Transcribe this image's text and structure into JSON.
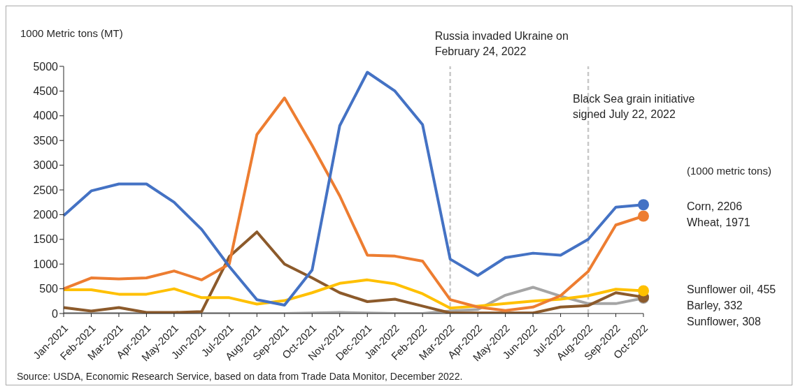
{
  "chart_data": {
    "type": "line",
    "ylabel": "1000 Metric tons (MT)",
    "categories": [
      "Jan-2021",
      "Feb-2021",
      "Mar-2021",
      "Apr-2021",
      "May-2021",
      "Jun-2021",
      "Jul-2021",
      "Aug-2021",
      "Sep-2021",
      "Oct-2021",
      "Nov-2021",
      "Dec-2021",
      "Jan-2022",
      "Feb-2022",
      "Mar-2022",
      "Apr-2022",
      "May-2022",
      "Jun-2022",
      "Jul-2022",
      "Aug-2022",
      "Sep-2022",
      "Oct-2022"
    ],
    "series": [
      {
        "name": "Corn, 2206",
        "color": "#4472c4",
        "values": [
          1980,
          2480,
          2620,
          2620,
          2250,
          1700,
          950,
          280,
          170,
          880,
          3800,
          4880,
          4500,
          3820,
          1100,
          770,
          1130,
          1220,
          1180,
          1500,
          2150,
          2200
        ]
      },
      {
        "name": "Wheat, 1971",
        "color": "#ed7d31",
        "values": [
          500,
          720,
          700,
          720,
          860,
          680,
          1000,
          3620,
          4360,
          3400,
          2380,
          1180,
          1160,
          1060,
          280,
          130,
          60,
          130,
          360,
          850,
          1790,
          1970
        ]
      },
      {
        "name": "Sunflower oil, 455",
        "color": "#ffc000",
        "values": [
          480,
          480,
          390,
          390,
          500,
          320,
          320,
          190,
          260,
          420,
          610,
          680,
          600,
          400,
          110,
          150,
          200,
          250,
          290,
          360,
          490,
          460
        ]
      },
      {
        "name": "Barley, 332",
        "color": "#8c5a2b",
        "values": [
          120,
          50,
          120,
          20,
          20,
          40,
          1150,
          1650,
          1000,
          720,
          420,
          240,
          290,
          150,
          10,
          10,
          10,
          10,
          130,
          160,
          420,
          330
        ]
      },
      {
        "name": "Sunflower, 308",
        "color": "#a5a5a5",
        "values": [
          0,
          0,
          0,
          0,
          0,
          0,
          0,
          0,
          0,
          10,
          20,
          10,
          0,
          0,
          50,
          80,
          370,
          530,
          350,
          200,
          200,
          310
        ]
      }
    ],
    "ylim": [
      0,
      5000
    ],
    "yticks": [
      0,
      500,
      1000,
      1500,
      2000,
      2500,
      3000,
      3500,
      4000,
      4500,
      5000
    ],
    "grid": false,
    "legend": false,
    "marker": "none",
    "line_style": "solid",
    "ref_lines": [
      {
        "axis": "x",
        "value": "Mar-2022",
        "label": "Russia invaded Ukraine on February 24, 2022",
        "color": "#c8c8c8",
        "line_style": "dashed"
      },
      {
        "axis": "x",
        "value": "Aug-2022",
        "label": "Black Sea grain initiative signed July 22, 2022",
        "color": "#c8c8c8",
        "line_style": "dashed"
      }
    ],
    "annotations": [
      "(1000 metric tons)",
      "Source: USDA, Economic Research Service, based on data from Trade Data Monitor, December 2022."
    ]
  }
}
